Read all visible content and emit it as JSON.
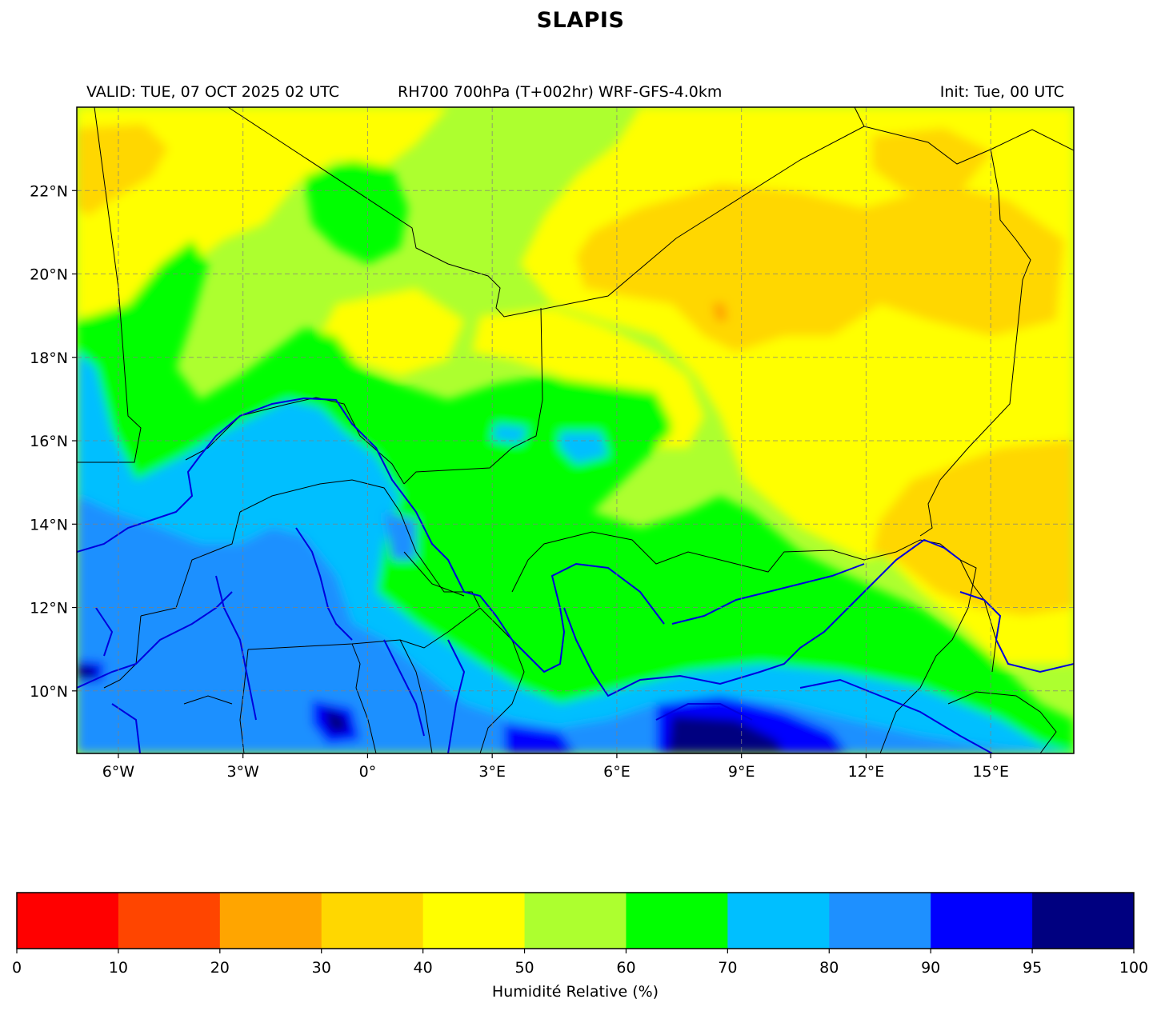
{
  "title": "SLAPIS",
  "subtitle_left": "VALID: TUE, 07 OCT 2025 02 UTC",
  "subtitle_center": "RH700 700hPa (T+002hr) WRF-GFS-4.0km",
  "subtitle_right": "Init: Tue, 00 UTC",
  "map": {
    "lon_range": [
      -7,
      17
    ],
    "lat_range": [
      8.5,
      24
    ],
    "x_ticks": [
      {
        "value": -6,
        "label": "6°W"
      },
      {
        "value": -3,
        "label": "3°W"
      },
      {
        "value": 0,
        "label": "0°"
      },
      {
        "value": 3,
        "label": "3°E"
      },
      {
        "value": 6,
        "label": "6°E"
      },
      {
        "value": 9,
        "label": "9°E"
      },
      {
        "value": 12,
        "label": "12°E"
      },
      {
        "value": 15,
        "label": "15°E"
      }
    ],
    "y_ticks": [
      {
        "value": 10,
        "label": "10°N"
      },
      {
        "value": 12,
        "label": "12°N"
      },
      {
        "value": 14,
        "label": "14°N"
      },
      {
        "value": 16,
        "label": "16°N"
      },
      {
        "value": 18,
        "label": "18°N"
      },
      {
        "value": 20,
        "label": "20°N"
      },
      {
        "value": 22,
        "label": "22°N"
      }
    ],
    "gridlines": true,
    "field": "relative humidity at 700 hPa (%)"
  },
  "colorbar": {
    "label": "Humidité Relative (%)",
    "bounds": [
      0,
      10,
      20,
      30,
      40,
      50,
      60,
      70,
      80,
      90,
      95,
      100
    ],
    "colors": [
      "#ff0000",
      "#ff4500",
      "#ffa500",
      "#ffd700",
      "#ffff00",
      "#adff2f",
      "#00ff00",
      "#00bfff",
      "#1e90ff",
      "#0000ff",
      "#000080"
    ]
  }
}
